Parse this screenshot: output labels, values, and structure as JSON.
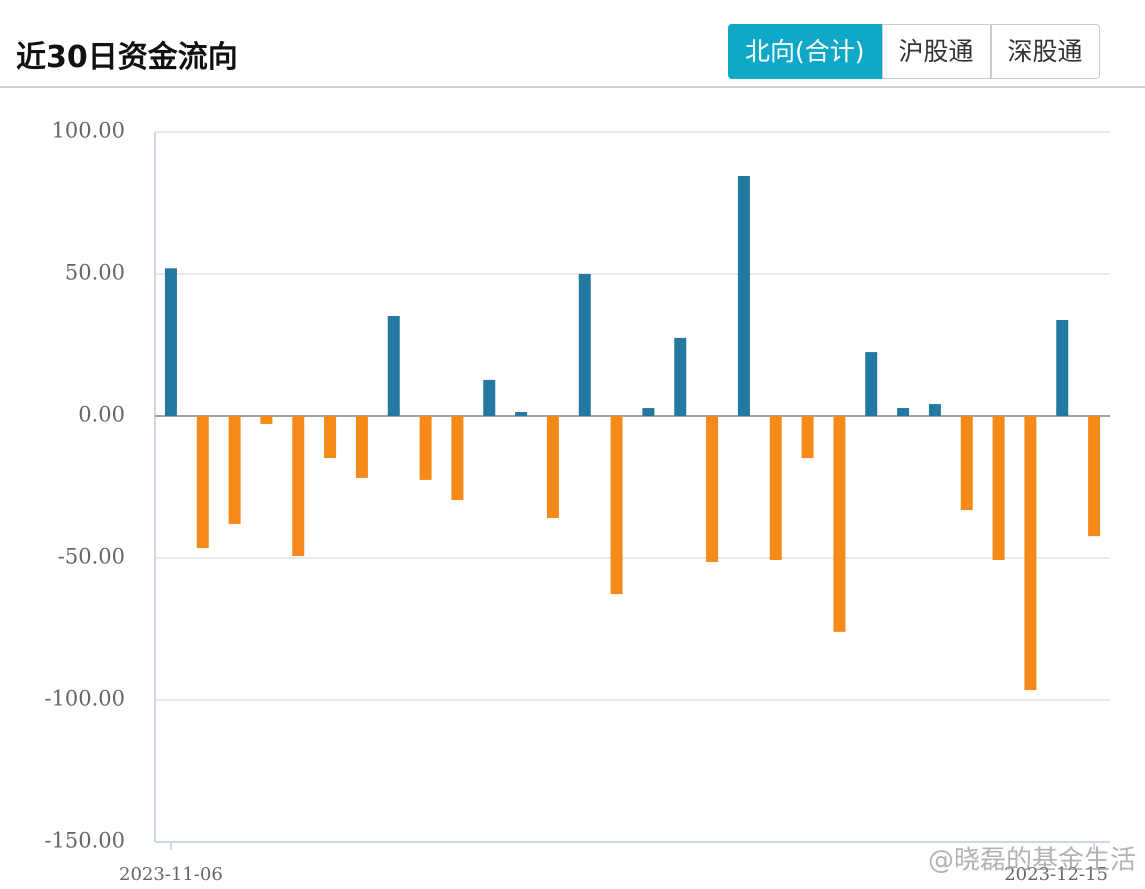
{
  "header": {
    "title": "近30日资金流向"
  },
  "tabs": [
    {
      "label": "北向(合计)",
      "active": true
    },
    {
      "label": "沪股通",
      "active": false
    },
    {
      "label": "深股通",
      "active": false
    }
  ],
  "chart_data": {
    "type": "bar",
    "categories": [
      "2023-11-06",
      null,
      null,
      null,
      null,
      null,
      null,
      null,
      null,
      null,
      null,
      null,
      null,
      null,
      null,
      null,
      null,
      null,
      null,
      null,
      null,
      null,
      null,
      null,
      null,
      null,
      null,
      null,
      null,
      "2023-12-15"
    ],
    "values": [
      52,
      -46.5,
      -38,
      -2.8,
      -49.3,
      -14.8,
      -21.8,
      35.2,
      -22.5,
      -29.6,
      12.7,
      1.4,
      -35.9,
      50,
      -62.7,
      2.8,
      27.5,
      -51.4,
      84.5,
      -50.7,
      -14.8,
      -76,
      22.5,
      2.8,
      4.2,
      -33.1,
      -50.7,
      -96.5,
      33.8,
      -42.3
    ],
    "colors": {
      "positive": "#23799f",
      "negative": "#f58a1a"
    },
    "ylim": [
      -150,
      100
    ],
    "yticks": [
      {
        "value": -150,
        "label": "-150.00"
      },
      {
        "value": -100,
        "label": "-100.00"
      },
      {
        "value": -50,
        "label": "-50.00"
      },
      {
        "value": 0,
        "label": "0.00"
      },
      {
        "value": 50,
        "label": "50.00"
      },
      {
        "value": 100,
        "label": "100.00"
      }
    ],
    "grid": true
  },
  "watermark": "@晓磊的基金生活"
}
